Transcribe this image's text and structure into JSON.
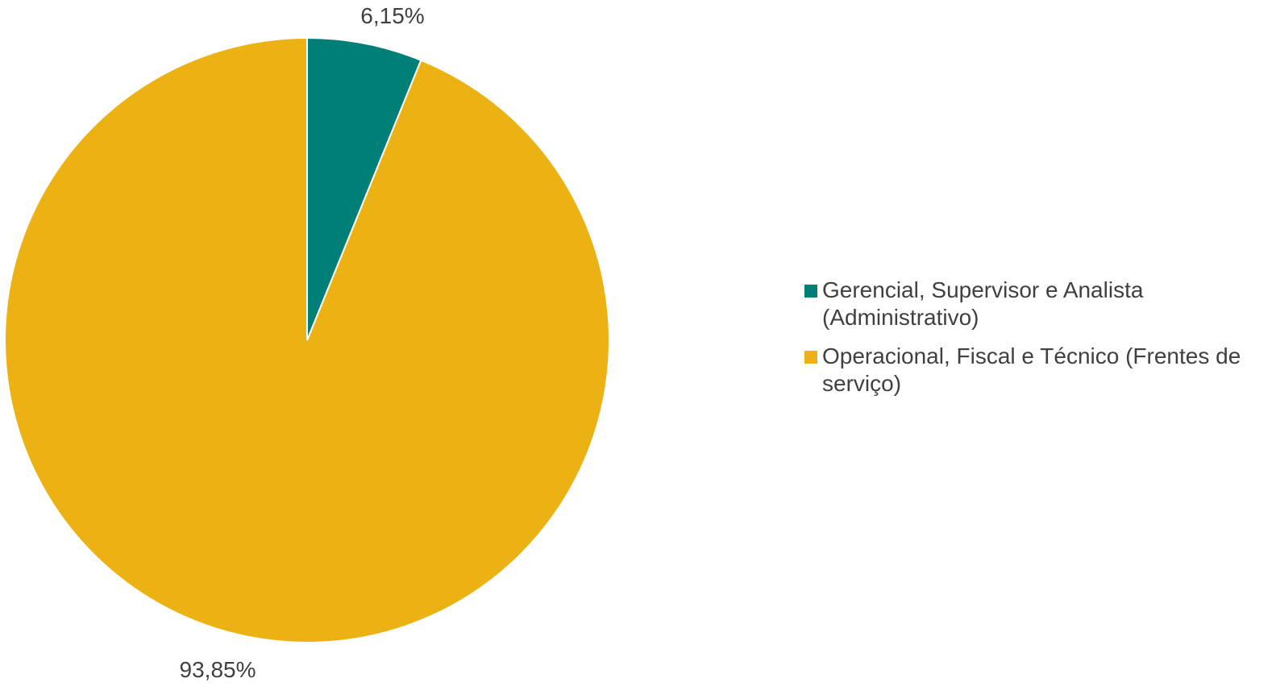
{
  "chart_data": {
    "type": "pie",
    "categories": [
      "Gerencial, Supervisor e Analista (Administrativo)",
      "Operacional, Fiscal e Técnico (Frentes de serviço)"
    ],
    "values": [
      6.15,
      93.85
    ],
    "data_labels": [
      "6,15%",
      "93,85%"
    ],
    "colors": [
      "#007F78",
      "#ECB213"
    ],
    "legend_position": "right"
  }
}
